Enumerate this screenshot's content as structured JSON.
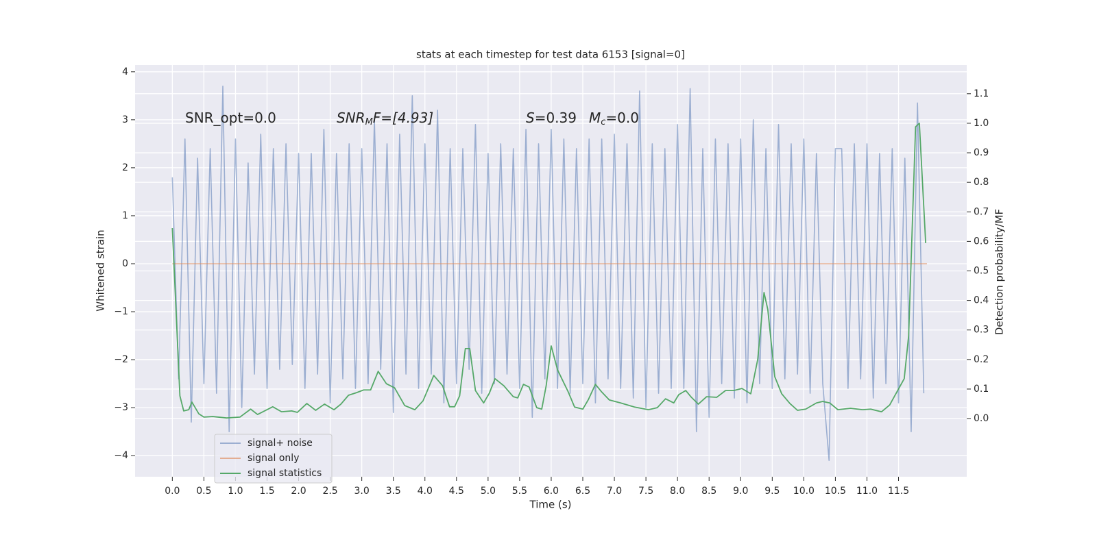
{
  "chart_data": {
    "type": "line",
    "title": "stats at each timestep for test data 6153 [signal=0]",
    "xlabel": "Time (s)",
    "ylabel": "Whitened strain",
    "y2label": "Detection probability/MF",
    "xlim": [
      -0.59,
      12.58
    ],
    "ylim": [
      -4.44,
      4.14
    ],
    "y2lim": [
      -0.197,
      1.197
    ],
    "xticks": [
      {
        "value": 0,
        "label": "0.0"
      },
      0.5,
      {
        "value": 1,
        "label": "1.0"
      },
      1.5,
      {
        "value": 2,
        "label": "2.0"
      },
      2.5,
      {
        "value": 3,
        "label": "3.0"
      },
      3.5,
      {
        "value": 4,
        "label": "4.0"
      },
      4.5,
      {
        "value": 5,
        "label": "5.0"
      },
      5.5,
      {
        "value": 6,
        "label": "6.0"
      },
      6.5,
      {
        "value": 7,
        "label": "7.0"
      },
      7.5,
      {
        "value": 8,
        "label": "8.0"
      },
      8.5,
      {
        "value": 9,
        "label": "9.0"
      },
      9.5,
      {
        "value": 10,
        "label": "10.0"
      },
      10.5,
      {
        "value": 11,
        "label": "11.0"
      },
      11.5
    ],
    "yticks": [
      {
        "value": -4,
        "label": "−4"
      },
      {
        "value": -3,
        "label": "−3"
      },
      {
        "value": -2,
        "label": "−2"
      },
      {
        "value": -1,
        "label": "−1"
      },
      0,
      1,
      2,
      3,
      4
    ],
    "y2ticks": [
      {
        "value": 0,
        "label": "0.0"
      },
      0.1,
      0.2,
      0.3,
      0.4,
      0.5,
      0.6,
      0.7,
      0.8,
      0.9,
      {
        "value": 1,
        "label": "1.0"
      },
      1.1
    ],
    "grid": true,
    "legend_loc": "lower left",
    "annotations": [
      [
        "SNR_opt=0.0"
      ],
      [
        "SNR",
        "M",
        "F=[4.93]"
      ],
      [
        "S",
        "=0.39"
      ],
      [
        "M",
        "c",
        "=0.0"
      ]
    ],
    "series": [
      {
        "name": "signal+ noise",
        "color": "#4c72b0",
        "x": [
          0,
          0.1,
          0.2,
          0.3,
          0.4,
          0.5,
          0.6,
          0.7,
          0.8,
          0.9,
          1,
          1.1,
          1.2,
          1.3,
          1.4,
          1.5,
          1.6,
          1.7,
          1.8,
          1.9,
          2,
          2.1,
          2.2,
          2.3,
          2.4,
          2.5,
          2.6,
          2.7,
          2.8,
          2.9,
          3,
          3.1,
          3.2,
          3.3,
          3.4,
          3.5,
          3.6,
          3.7,
          3.8,
          3.9,
          4,
          4.1,
          4.2,
          4.3,
          4.4,
          4.5,
          4.6,
          4.7,
          4.8,
          4.9,
          5,
          5.1,
          5.2,
          5.3,
          5.4,
          5.5,
          5.6,
          5.7,
          5.8,
          5.9,
          6,
          6.1,
          6.2,
          6.3,
          6.4,
          6.5,
          6.6,
          6.7,
          6.8,
          6.9,
          7,
          7.1,
          7.2,
          7.3,
          7.4,
          7.5,
          7.6,
          7.7,
          7.8,
          7.9,
          8,
          8.1,
          8.2,
          8.3,
          8.4,
          8.5,
          8.6,
          8.7,
          8.8,
          8.9,
          9,
          9.1,
          9.2,
          9.3,
          9.4,
          9.5,
          9.6,
          9.7,
          9.8,
          9.9,
          10,
          10.1,
          10.2,
          10.3,
          10.4,
          10.5,
          10.6,
          10.7,
          10.8,
          10.9,
          11,
          11.1,
          11.2,
          11.3,
          11.4,
          11.5,
          11.6,
          11.7,
          11.8,
          11.9
        ],
        "values": [
          1.8,
          -2.4,
          2.6,
          -3.3,
          2.2,
          -2.5,
          2.4,
          -2.7,
          3.7,
          -3.5,
          2.6,
          -3.0,
          2.1,
          -2.3,
          2.7,
          -2.6,
          2.4,
          -2.2,
          2.5,
          -2.1,
          2.3,
          -2.6,
          2.3,
          -2.3,
          2.8,
          -2.9,
          2.3,
          -2.4,
          2.5,
          -2.6,
          2.4,
          -2.5,
          3.0,
          -2.2,
          2.5,
          -3.1,
          2.7,
          -2.3,
          3.5,
          -2.6,
          2.5,
          -2.3,
          3.2,
          -2.9,
          2.4,
          -2.5,
          2.4,
          -2.2,
          2.9,
          -2.7,
          2.3,
          -2.5,
          2.5,
          -2.3,
          2.4,
          -2.6,
          2.8,
          -3.2,
          2.5,
          -2.4,
          2.8,
          -2.6,
          2.6,
          -2.7,
          2.4,
          -2.5,
          2.6,
          -2.9,
          2.6,
          -2.4,
          2.7,
          -2.6,
          2.5,
          -2.8,
          3.6,
          -3.0,
          2.5,
          -2.7,
          2.4,
          -2.6,
          2.9,
          -2.6,
          3.65,
          -3.5,
          2.4,
          -3.2,
          2.6,
          -2.5,
          2.5,
          -2.8,
          2.6,
          -2.9,
          3.0,
          -2.5,
          2.4,
          -2.6,
          2.9,
          -2.4,
          2.5,
          -2.3,
          2.6,
          -2.7,
          2.3,
          -2.5,
          -4.1,
          2.4,
          2.4,
          -2.6,
          2.5,
          -2.4,
          2.5,
          -2.8,
          2.3,
          -2.5,
          2.4,
          -2.9,
          2.2,
          -3.5,
          3.35,
          -2.7
        ]
      },
      {
        "name": "signal only",
        "color": "#dd8452",
        "x": [
          0,
          11.95
        ],
        "values": [
          0,
          0
        ]
      },
      {
        "name": "signal statistics",
        "color": "#55a868",
        "axis": "y2",
        "x": [
          0,
          0.12,
          0.18,
          0.26,
          0.31,
          0.42,
          0.5,
          0.64,
          0.86,
          1.07,
          1.24,
          1.35,
          1.59,
          1.73,
          1.89,
          1.98,
          2.13,
          2.27,
          2.41,
          2.56,
          2.67,
          2.79,
          2.92,
          3.03,
          3.14,
          3.26,
          3.39,
          3.52,
          3.68,
          3.84,
          3.97,
          4.14,
          4.28,
          4.39,
          4.47,
          4.55,
          4.64,
          4.71,
          4.8,
          4.93,
          5.02,
          5.11,
          5.25,
          5.4,
          5.47,
          5.56,
          5.65,
          5.77,
          5.85,
          5.92,
          6.0,
          6.1,
          6.27,
          6.37,
          6.5,
          6.59,
          6.7,
          6.8,
          6.92,
          7.1,
          7.32,
          7.54,
          7.68,
          7.81,
          7.94,
          8.02,
          8.13,
          8.22,
          8.33,
          8.46,
          8.62,
          8.76,
          8.89,
          9.02,
          9.16,
          9.27,
          9.37,
          9.43,
          9.54,
          9.65,
          9.78,
          9.9,
          10.03,
          10.2,
          10.3,
          10.41,
          10.54,
          10.74,
          10.93,
          11.06,
          11.23,
          11.36,
          11.44,
          11.59,
          11.66,
          11.77,
          11.83,
          11.93
        ],
        "values": [
          0.645,
          0.077,
          0.026,
          0.03,
          0.056,
          0.016,
          0.005,
          0.007,
          0.002,
          0.005,
          0.032,
          0.014,
          0.04,
          0.023,
          0.026,
          0.021,
          0.051,
          0.028,
          0.049,
          0.03,
          0.049,
          0.079,
          0.088,
          0.097,
          0.097,
          0.16,
          0.118,
          0.104,
          0.044,
          0.03,
          0.06,
          0.146,
          0.111,
          0.04,
          0.04,
          0.077,
          0.237,
          0.237,
          0.095,
          0.053,
          0.086,
          0.135,
          0.111,
          0.074,
          0.07,
          0.116,
          0.107,
          0.037,
          0.032,
          0.111,
          0.246,
          0.165,
          0.09,
          0.039,
          0.032,
          0.065,
          0.116,
          0.09,
          0.063,
          0.053,
          0.039,
          0.03,
          0.037,
          0.067,
          0.053,
          0.081,
          0.095,
          0.072,
          0.049,
          0.074,
          0.072,
          0.095,
          0.095,
          0.102,
          0.084,
          0.2,
          0.427,
          0.369,
          0.142,
          0.084,
          0.051,
          0.028,
          0.032,
          0.053,
          0.058,
          0.053,
          0.03,
          0.035,
          0.03,
          0.032,
          0.023,
          0.046,
          0.077,
          0.135,
          0.28,
          0.988,
          1.0,
          0.594
        ]
      }
    ]
  }
}
